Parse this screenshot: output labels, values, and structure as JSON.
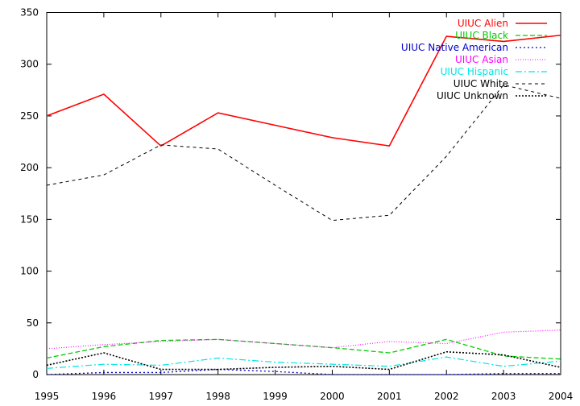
{
  "chart_data": {
    "type": "line",
    "title": "",
    "xlabel": "",
    "ylabel": "",
    "x": [
      1995,
      1996,
      1997,
      1998,
      1999,
      2000,
      2001,
      2002,
      2003,
      2004
    ],
    "xlim": [
      1995,
      2004
    ],
    "ylim": [
      0,
      350
    ],
    "x_ticks": [
      "1995",
      "1996",
      "1997",
      "1998",
      "1999",
      "2000",
      "2001",
      "2002",
      "2003",
      "2004"
    ],
    "y_ticks": [
      "0",
      "50",
      "100",
      "150",
      "200",
      "250",
      "300",
      "350"
    ],
    "grid": false,
    "legend_position": "top-right",
    "series": [
      {
        "name": "UIUC Alien",
        "color": "#ff0000",
        "dash": "solid",
        "values": [
          250,
          271,
          221,
          253,
          241,
          229,
          221,
          327,
          322,
          328
        ]
      },
      {
        "name": "UIUC Black",
        "color": "#00cc00",
        "dash": "dashed",
        "values": [
          16,
          27,
          33,
          34,
          30,
          26,
          21,
          34,
          18,
          15
        ]
      },
      {
        "name": "UIUC Native American",
        "color": "#0000cc",
        "dash": "dotted",
        "values": [
          0,
          2,
          2,
          5,
          3,
          0,
          0,
          0,
          1,
          1
        ]
      },
      {
        "name": "UIUC Asian",
        "color": "#ff00ff",
        "dash": "fine-dotted",
        "values": [
          25,
          29,
          32,
          34,
          30,
          26,
          32,
          30,
          41,
          43
        ]
      },
      {
        "name": "UIUC Hispanic",
        "color": "#00e5e5",
        "dash": "dash-dot",
        "values": [
          6,
          10,
          9,
          16,
          12,
          10,
          8,
          17,
          8,
          13
        ]
      },
      {
        "name": "UIUC White",
        "color": "#000000",
        "dash": "sparse-dashed",
        "values": [
          183,
          193,
          222,
          218,
          183,
          149,
          154,
          211,
          280,
          267
        ]
      },
      {
        "name": "UIUC Unknown",
        "color": "#000000",
        "dash": "dense-dotted",
        "values": [
          9,
          21,
          5,
          5,
          7,
          8,
          5,
          22,
          19,
          7
        ]
      }
    ]
  }
}
